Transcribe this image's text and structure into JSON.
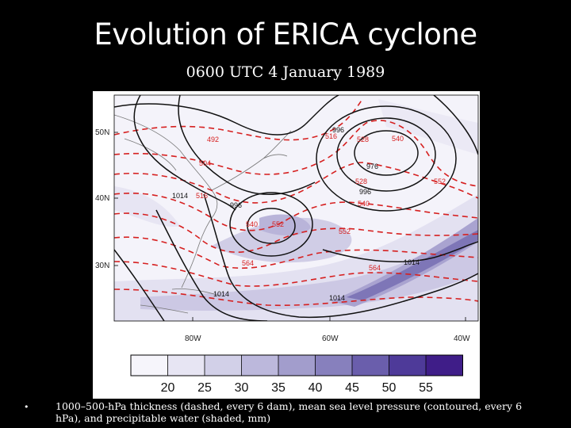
{
  "title": "Evolution of ERICA cyclone",
  "subtitle": "0600 UTC 4 January 1989",
  "map": {
    "lat_labels": [
      "50N",
      "40N",
      "30N"
    ],
    "lon_labels": [
      "80W",
      "60W",
      "40W"
    ],
    "thickness_labels": [
      "492",
      "504",
      "516",
      "516",
      "528",
      "528",
      "540",
      "540",
      "540",
      "552",
      "552",
      "552",
      "564",
      "564"
    ],
    "pressure_labels": [
      "996",
      "976",
      "996",
      "1014",
      "996",
      "1014",
      "1014",
      "1014"
    ],
    "colors": {
      "thickness_contour": "#d62020",
      "pressure_contour": "#111111",
      "coast": "#555555"
    }
  },
  "colorbar": {
    "ticks": [
      "20",
      "25",
      "30",
      "35",
      "40",
      "45",
      "50",
      "55"
    ],
    "colors": [
      "#f6f5fb",
      "#e7e5f3",
      "#d2d0e8",
      "#bcb8dc",
      "#a29dcc",
      "#8780bd",
      "#6a5eac",
      "#4e3a99",
      "#3f1d88"
    ]
  },
  "caption": {
    "bullet": "•",
    "text": "1000–500-hPa thickness (dashed, every 6 dam), mean sea level pressure (contoured, every 6 hPa), and precipitable water (shaded, mm)"
  }
}
